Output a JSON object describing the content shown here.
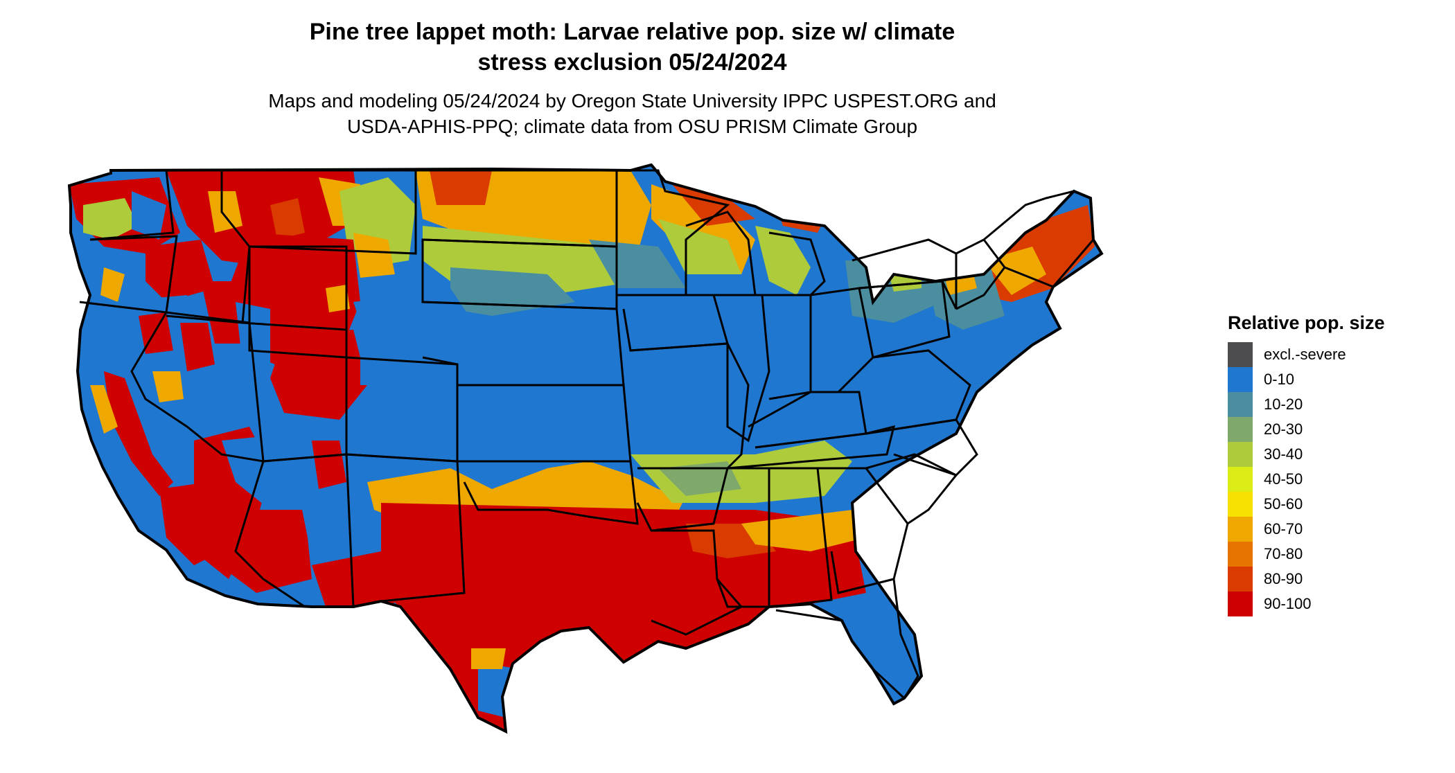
{
  "header": {
    "title_line1": "Pine tree lappet moth: Larvae relative pop. size w/ climate",
    "title_line2": "stress exclusion 05/24/2024",
    "subtitle_line1": "Maps and modeling 05/24/2024 by Oregon State University IPPC USPEST.ORG and",
    "subtitle_line2": "USDA-APHIS-PPQ; climate data from OSU PRISM Climate Group"
  },
  "map": {
    "region": "contiguous-united-states",
    "colors": {
      "exclusion": "#4d4d4f",
      "c0_10": "#1f77cf",
      "c10_20": "#4b8ea0",
      "c20_30": "#7ea96b",
      "c30_40": "#aecb3c",
      "c40_50": "#dced16",
      "c50_60": "#f6e000",
      "c60_70": "#efa800",
      "c70_80": "#e77300",
      "c80_90": "#da3b00",
      "c90_100": "#cf0000",
      "border": "#000000"
    }
  },
  "legend": {
    "title": "Relative pop. size",
    "items": [
      {
        "label": "excl.-severe",
        "color": "#4d4d4f"
      },
      {
        "label": "0-10",
        "color": "#1f77cf"
      },
      {
        "label": "10-20",
        "color": "#4b8ea0"
      },
      {
        "label": "20-30",
        "color": "#7ea96b"
      },
      {
        "label": "30-40",
        "color": "#aecb3c"
      },
      {
        "label": "40-50",
        "color": "#dced16"
      },
      {
        "label": "50-60",
        "color": "#f6e000"
      },
      {
        "label": "60-70",
        "color": "#efa800"
      },
      {
        "label": "70-80",
        "color": "#e77300"
      },
      {
        "label": "80-90",
        "color": "#da3b00"
      },
      {
        "label": "90-100",
        "color": "#cf0000"
      }
    ]
  }
}
